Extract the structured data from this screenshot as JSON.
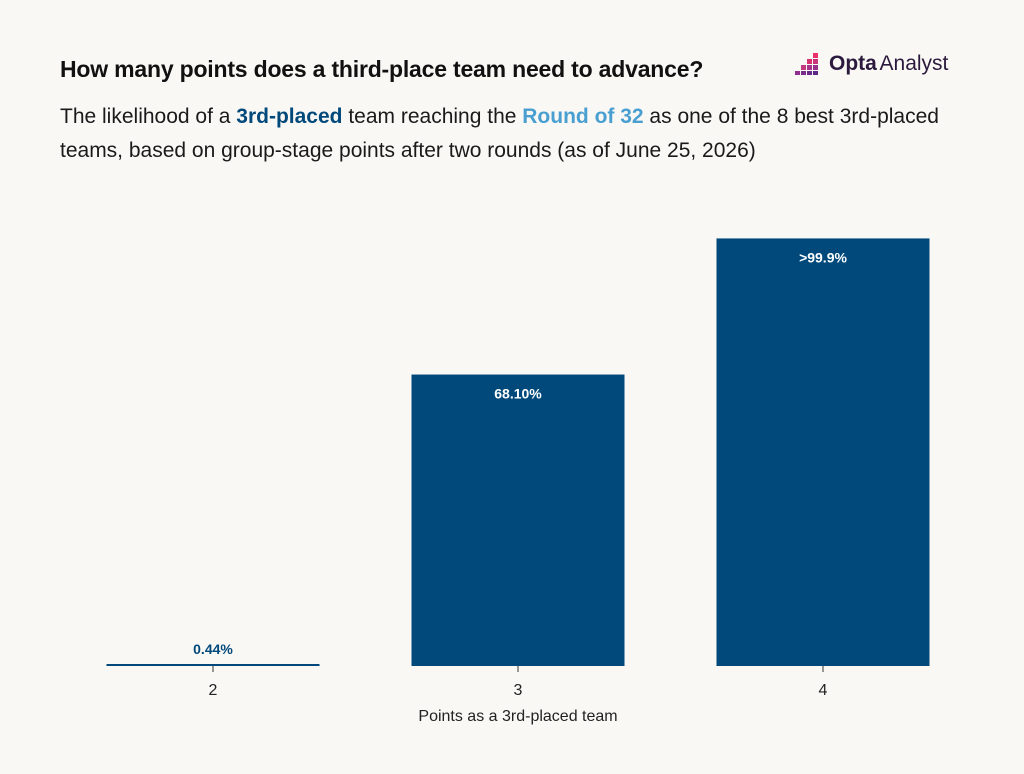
{
  "header": {
    "title": "How many points does a third-place team need to advance?",
    "subtitle": {
      "part1": "The likelihood of a ",
      "highlight1": "3rd-placed",
      "part2": " team reaching the ",
      "highlight2": "Round of 32",
      "part3": " as one of the 8 best 3rd-placed teams, based on group-stage points after two rounds (as of June 25, 2026)"
    }
  },
  "brand": {
    "name_bold": "Opta",
    "name_regular": " Analyst",
    "icon": "opta-bars-icon"
  },
  "colors": {
    "bar": "#00497a",
    "highlight1": "#00497a",
    "highlight2": "#4a9fd1",
    "logo_gradient": [
      "#e8336d",
      "#7b2d8e"
    ]
  },
  "chart_data": {
    "type": "bar",
    "categories": [
      "2",
      "3",
      "4"
    ],
    "values": [
      0.44,
      68.1,
      99.9
    ],
    "data_labels": [
      "0.44%",
      "68.10%",
      ">99.9%"
    ],
    "xlabel": "Points as a 3rd-placed team",
    "ylabel": "",
    "ylim": [
      0,
      100
    ],
    "grid": false,
    "legend": "none"
  }
}
